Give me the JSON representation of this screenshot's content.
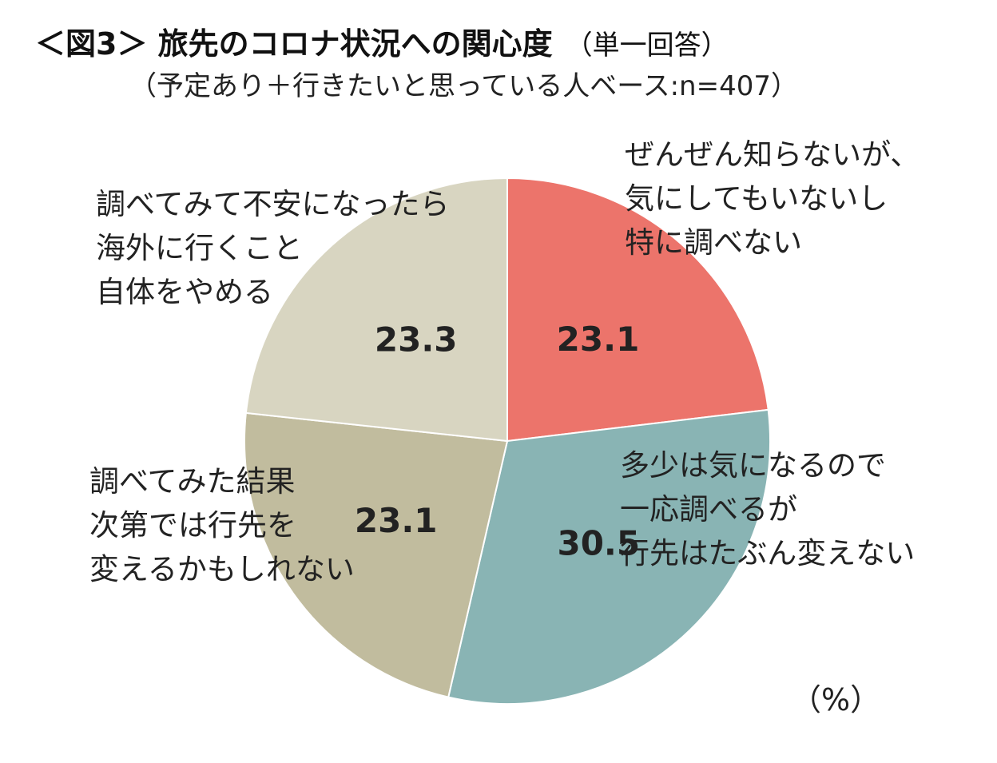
{
  "title": "＜図3＞ 旅先のコロナ状況への関心度",
  "title_note": "（単一回答）",
  "subtitle": "（予定あり＋行きたいと思っている人ベース:n=407）",
  "unit": "（%）",
  "chart_data": {
    "type": "pie",
    "start": "12 o'clock, clockwise",
    "slices": [
      {
        "label_lines": [
          "ぜんぜん知らないが、",
          "気にしてもいないし",
          "特に調べない"
        ],
        "value": 23.1,
        "value_text": "23.1",
        "color": "#ec746b"
      },
      {
        "label_lines": [
          "多少は気になるので",
          "一応調べるが",
          "行先はたぶん変えない"
        ],
        "value": 30.5,
        "value_text": "30.5",
        "color": "#89b4b4"
      },
      {
        "label_lines": [
          "調べてみた結果",
          "次第では行先を",
          "変えるかもしれない"
        ],
        "value": 23.1,
        "value_text": "23.1",
        "color": "#c1bc9e"
      },
      {
        "label_lines": [
          "調べてみて不安になったら",
          "海外に行くこと",
          "自体をやめる"
        ],
        "value": 23.3,
        "value_text": "23.3",
        "color": "#d8d5c1"
      }
    ]
  }
}
